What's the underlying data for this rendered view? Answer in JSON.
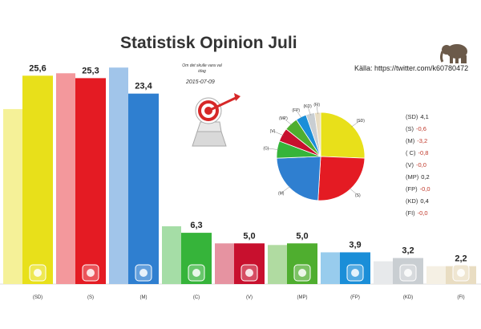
{
  "title": "Statistisk Opinion Juli",
  "subtitle": "Om det skulle vara val idag",
  "date": "2015-07-09",
  "source": "Källa: https://twitter.com/k60780472",
  "chart_data": [
    {
      "type": "bar",
      "title": "Statistisk Opinion Juli",
      "categories": [
        "(SD)",
        "(S)",
        "(M)",
        "(C)",
        "(V)",
        "(MP)",
        "(FP)",
        "(KD)",
        "(FI)"
      ],
      "series": [
        {
          "values": [
            25.6,
            25.3,
            23.4,
            6.3,
            5.0,
            5.0,
            3.9,
            3.2,
            2.2
          ]
        }
      ],
      "value_labels": [
        "25,6",
        "25,3",
        "23,4",
        "6,3",
        "5,0",
        "5,0",
        "3,9",
        "3,2",
        "2,2"
      ],
      "previous_values": [
        21.5,
        25.9,
        26.6,
        7.1,
        5.0,
        4.8,
        3.9,
        2.8,
        2.2
      ],
      "colors": [
        "#e8e01a",
        "#e41b23",
        "#2f7fd0",
        "#36b43a",
        "#c8102e",
        "#4fae2f",
        "#1a8ed8",
        "#c9ced2",
        "#e9ddc2"
      ],
      "ylim": [
        0,
        28
      ],
      "grid": false,
      "legend": "none"
    },
    {
      "type": "pie",
      "labels": [
        "(SD)",
        "(S)",
        "(M)",
        "(C)",
        "(V)",
        "(MP)",
        "(FP)",
        "(KD)",
        "(FI)"
      ],
      "values": [
        25.6,
        25.3,
        23.4,
        6.3,
        5.0,
        5.0,
        3.9,
        3.2,
        2.2
      ],
      "colors": [
        "#e8e01a",
        "#e41b23",
        "#2f7fd0",
        "#36b43a",
        "#c8102e",
        "#4fae2f",
        "#1a8ed8",
        "#c9ced2",
        "#e9ddc2"
      ]
    }
  ],
  "changes": [
    {
      "party": "(SD)",
      "value": "4,1",
      "sign": "pos"
    },
    {
      "party": "(S)",
      "value": "-0,6",
      "sign": "neg"
    },
    {
      "party": "(M)",
      "value": "-3,2",
      "sign": "neg"
    },
    {
      "party": "( C)",
      "value": "-0,8",
      "sign": "neg"
    },
    {
      "party": "(V)",
      "value": "-0,0",
      "sign": "neg"
    },
    {
      "party": "(MP)",
      "value": "0,2",
      "sign": "pos"
    },
    {
      "party": "(FP)",
      "value": "-0,0",
      "sign": "neg"
    },
    {
      "party": "(KD)",
      "value": "0,4",
      "sign": "pos"
    },
    {
      "party": "(FI)",
      "value": "-0,0",
      "sign": "neg"
    }
  ],
  "icons": [
    "sd-flower-icon",
    "s-rose-icon",
    "m-logo-icon",
    "c-clover-icon",
    "v-logo-icon",
    "mp-dandelion-icon",
    "fp-logo-icon",
    "kd-logo-icon",
    "fi-logo-icon"
  ]
}
